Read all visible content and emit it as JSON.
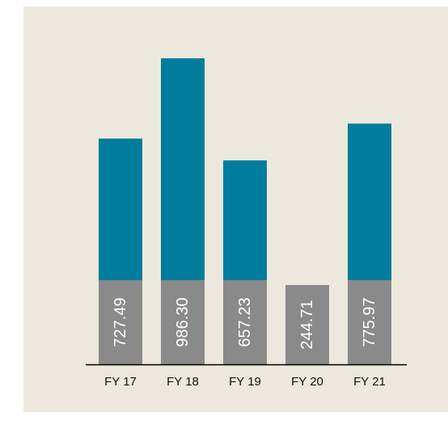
{
  "chart_data": {
    "type": "bar",
    "categories": [
      "FY 17",
      "FY 18",
      "FY 19",
      "FY 20",
      "FY 21"
    ],
    "values": [
      727.49,
      986.3,
      657.23,
      244.71,
      775.97
    ],
    "value_labels": [
      "727.49",
      "986.30",
      "657.23",
      "244.71",
      "775.97"
    ],
    "title": "",
    "xlabel": "",
    "ylabel": "",
    "ylim": [
      0,
      1000
    ],
    "grid": false,
    "legend": "none",
    "colors": {
      "bar": "#007d9c",
      "label_box": "#8a8a8a",
      "label_text": "#ffffff",
      "axis": "#000000",
      "background": "#ede8dd"
    }
  }
}
